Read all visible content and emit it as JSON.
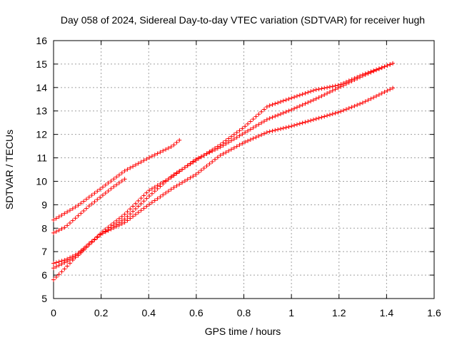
{
  "chart_data": {
    "type": "scatter",
    "title": "Day 058 of 2024, Sidereal Day-to-day VTEC variation (SDTVAR) for receiver hugh",
    "xlabel": "GPS time / hours",
    "ylabel": "SDTVAR / TECUs",
    "xlim": [
      0,
      1.6
    ],
    "ylim": [
      5,
      16
    ],
    "x_ticks": [
      0,
      0.2,
      0.4,
      0.6,
      0.8,
      1,
      1.2,
      1.4,
      1.6
    ],
    "x_tick_labels": [
      "0",
      "0.2",
      "0.4",
      "0.6",
      "0.8",
      "1",
      "1.2",
      "1.4",
      "1.6"
    ],
    "y_ticks": [
      5,
      6,
      7,
      8,
      9,
      10,
      11,
      12,
      13,
      14,
      15,
      16
    ],
    "y_tick_labels": [
      "5",
      "6",
      "7",
      "8",
      "9",
      "10",
      "11",
      "12",
      "13",
      "14",
      "15",
      "16"
    ],
    "grid": true,
    "legend": "none",
    "marker": "+",
    "color": "#ff0000",
    "series": [
      {
        "x": [
          0,
          0.1,
          0.2,
          0.3,
          0.4,
          0.5,
          0.54
        ],
        "y": [
          8.35,
          8.95,
          9.7,
          10.45,
          11.0,
          11.5,
          11.85
        ]
      },
      {
        "x": [
          0,
          0.05,
          0.1,
          0.15,
          0.2,
          0.25,
          0.3
        ],
        "y": [
          7.8,
          8.05,
          8.5,
          8.95,
          9.35,
          9.75,
          10.1
        ]
      },
      {
        "x": [
          0,
          0.05,
          0.1,
          0.15,
          0.2,
          0.3,
          0.4,
          0.5,
          0.6,
          0.7,
          0.8,
          0.9,
          1.0,
          1.1,
          1.2,
          1.3,
          1.42
        ],
        "y": [
          6.5,
          6.65,
          6.9,
          7.35,
          7.75,
          8.4,
          9.35,
          10.25,
          10.9,
          11.55,
          12.3,
          13.2,
          13.55,
          13.9,
          14.1,
          14.55,
          15.0
        ]
      },
      {
        "x": [
          0,
          0.05,
          0.1,
          0.15,
          0.2,
          0.3,
          0.4,
          0.5,
          0.6,
          0.7,
          0.8,
          0.9,
          1.0,
          1.1,
          1.2,
          1.3,
          1.43
        ],
        "y": [
          6.3,
          6.55,
          6.8,
          7.3,
          7.8,
          8.6,
          9.6,
          10.2,
          10.95,
          11.45,
          12.05,
          12.65,
          13.05,
          13.5,
          14.0,
          14.5,
          15.05
        ]
      },
      {
        "x": [
          0,
          0.05,
          0.1,
          0.15,
          0.2,
          0.3,
          0.4,
          0.5,
          0.6,
          0.7,
          0.8,
          0.9,
          1.0,
          1.1,
          1.2,
          1.3,
          1.43
        ],
        "y": [
          5.8,
          6.3,
          6.85,
          7.3,
          7.75,
          8.25,
          9.0,
          9.7,
          10.3,
          11.1,
          11.65,
          12.1,
          12.35,
          12.65,
          12.95,
          13.35,
          14.0
        ]
      }
    ]
  }
}
